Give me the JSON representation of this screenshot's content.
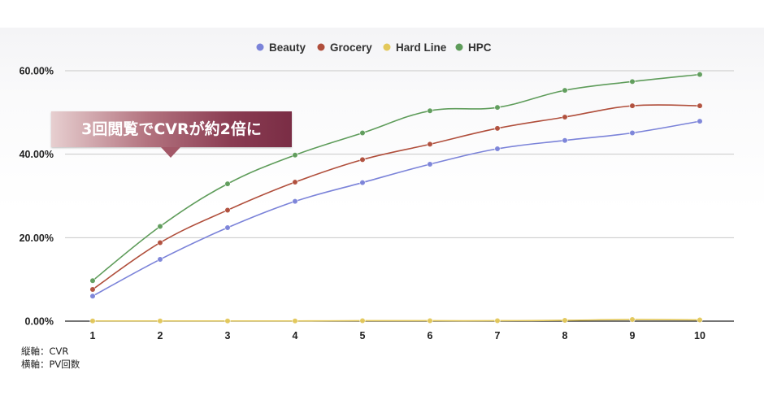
{
  "chart_data": {
    "type": "line",
    "title": "",
    "xlabel": "",
    "ylabel": "",
    "x": [
      1,
      2,
      3,
      4,
      5,
      6,
      7,
      8,
      9,
      10
    ],
    "x_tick_labels": [
      "1",
      "2",
      "3",
      "4",
      "5",
      "6",
      "7",
      "8",
      "9",
      "10"
    ],
    "ylim": [
      0,
      60
    ],
    "y_tick_labels": [
      "0.00%",
      "20.00%",
      "40.00%",
      "60.00%"
    ],
    "y_ticks": [
      0,
      20,
      40,
      60
    ],
    "grid": true,
    "legend_position": "top-center",
    "series": [
      {
        "name": "Beauty",
        "color": "#7b83d9",
        "values": [
          6.0,
          14.8,
          22.4,
          28.7,
          33.2,
          37.6,
          41.3,
          43.3,
          45.1,
          47.9
        ]
      },
      {
        "name": "Grocery",
        "color": "#b04e3b",
        "values": [
          7.6,
          18.8,
          26.6,
          33.3,
          38.7,
          42.4,
          46.2,
          48.9,
          51.6,
          51.6
        ]
      },
      {
        "name": "Hard Line",
        "color": "#e3c85a",
        "values": [
          0.05,
          0.05,
          0.05,
          0.05,
          0.1,
          0.1,
          0.1,
          0.2,
          0.4,
          0.3
        ]
      },
      {
        "name": "HPC",
        "color": "#5e9c5a",
        "values": [
          9.7,
          22.7,
          32.9,
          39.8,
          45.1,
          50.4,
          51.2,
          55.3,
          57.4,
          59.1
        ]
      }
    ],
    "annotation": "3回閲覧でCVRが約2倍に"
  },
  "notes": {
    "y_axis_note": "縦軸：CVR",
    "x_axis_note": "横軸：PV回数"
  }
}
